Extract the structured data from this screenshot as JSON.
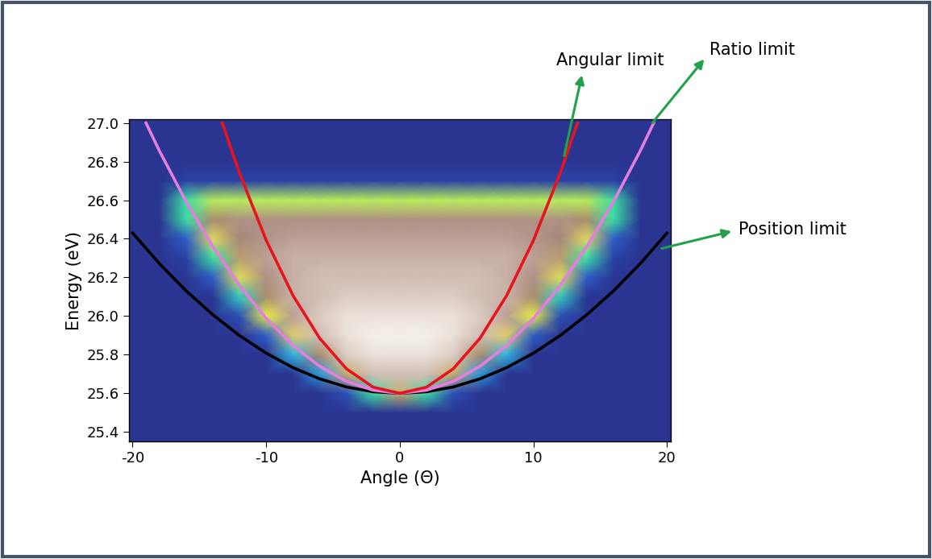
{
  "chart_data": {
    "type": "heatmap",
    "x_label": "Angle (Θ)",
    "y_label": "Energy (eV)",
    "xlim": [
      -20.3,
      20.3
    ],
    "ylim": [
      25.35,
      27.02
    ],
    "xticks": [
      -20,
      -10,
      0,
      10,
      20
    ],
    "yticks": [
      25.4,
      25.6,
      25.8,
      26.0,
      26.2,
      26.4,
      26.6,
      26.8,
      27.0
    ],
    "heatmap": {
      "x": [
        -20,
        -18,
        -16,
        -14,
        -12,
        -10,
        -8,
        -6,
        -4,
        -2,
        0,
        2,
        4,
        6,
        8,
        10,
        12,
        14,
        16,
        18,
        20
      ],
      "y": [
        25.4,
        25.5,
        25.6,
        25.7,
        25.8,
        25.9,
        26.0,
        26.1,
        26.2,
        26.3,
        26.4,
        26.5,
        26.6,
        26.7,
        26.8,
        26.9,
        27.0
      ],
      "cells": [
        [
          0,
          0,
          0,
          0,
          0,
          0,
          0,
          0,
          0,
          0,
          0,
          0,
          0,
          0,
          0,
          0,
          0,
          0,
          0,
          0,
          0
        ],
        [
          0,
          0,
          0,
          0,
          0,
          0,
          0,
          0,
          0,
          0,
          0,
          0,
          0,
          0,
          0,
          0,
          0,
          0,
          0,
          0,
          0
        ],
        [
          0,
          0,
          0,
          0,
          0,
          0,
          0,
          0,
          0.1,
          0.4,
          0.7,
          0.4,
          0.1,
          0,
          0,
          0,
          0,
          0,
          0,
          0,
          0
        ],
        [
          0,
          0,
          0,
          0,
          0,
          0,
          0,
          0.25,
          0.7,
          0.9,
          0.9,
          0.9,
          0.7,
          0.25,
          0,
          0,
          0,
          0,
          0,
          0,
          0
        ],
        [
          0,
          0,
          0,
          0,
          0,
          0,
          0.3,
          0.75,
          0.92,
          0.95,
          0.95,
          0.95,
          0.92,
          0.75,
          0.3,
          0,
          0,
          0,
          0,
          0,
          0
        ],
        [
          0,
          0,
          0,
          0,
          0,
          0.15,
          0.65,
          0.9,
          0.95,
          0.97,
          0.97,
          0.97,
          0.95,
          0.9,
          0.65,
          0.15,
          0,
          0,
          0,
          0,
          0
        ],
        [
          0,
          0,
          0,
          0,
          0.1,
          0.55,
          0.85,
          0.92,
          0.95,
          0.95,
          0.95,
          0.95,
          0.95,
          0.92,
          0.85,
          0.55,
          0.1,
          0,
          0,
          0,
          0
        ],
        [
          0,
          0,
          0,
          0,
          0.35,
          0.75,
          0.88,
          0.9,
          0.92,
          0.92,
          0.92,
          0.92,
          0.92,
          0.9,
          0.88,
          0.75,
          0.35,
          0,
          0,
          0,
          0
        ],
        [
          0,
          0,
          0,
          0.15,
          0.6,
          0.82,
          0.88,
          0.9,
          0.9,
          0.9,
          0.9,
          0.9,
          0.9,
          0.9,
          0.88,
          0.82,
          0.6,
          0.15,
          0,
          0,
          0
        ],
        [
          0,
          0,
          0.05,
          0.4,
          0.72,
          0.85,
          0.88,
          0.88,
          0.88,
          0.88,
          0.88,
          0.88,
          0.88,
          0.88,
          0.88,
          0.85,
          0.72,
          0.4,
          0.05,
          0,
          0
        ],
        [
          0,
          0,
          0.15,
          0.62,
          0.8,
          0.83,
          0.85,
          0.85,
          0.85,
          0.85,
          0.85,
          0.85,
          0.85,
          0.85,
          0.85,
          0.83,
          0.8,
          0.62,
          0.15,
          0,
          0
        ],
        [
          0,
          0,
          0.4,
          0.75,
          0.82,
          0.82,
          0.82,
          0.82,
          0.82,
          0.82,
          0.82,
          0.82,
          0.82,
          0.82,
          0.82,
          0.82,
          0.82,
          0.75,
          0.4,
          0,
          0
        ],
        [
          0,
          0,
          0.4,
          0.5,
          0.5,
          0.5,
          0.5,
          0.5,
          0.5,
          0.5,
          0.5,
          0.5,
          0.5,
          0.5,
          0.5,
          0.5,
          0.5,
          0.5,
          0.4,
          0,
          0
        ],
        [
          0,
          0,
          0.05,
          0.05,
          0.05,
          0.05,
          0.05,
          0.05,
          0.05,
          0.05,
          0.05,
          0.05,
          0.05,
          0.05,
          0.05,
          0.05,
          0.05,
          0.05,
          0.05,
          0,
          0
        ],
        [
          0,
          0,
          0,
          0,
          0,
          0,
          0,
          0,
          0,
          0,
          0,
          0,
          0,
          0,
          0,
          0,
          0,
          0,
          0,
          0,
          0
        ],
        [
          0,
          0,
          0,
          0,
          0,
          0,
          0,
          0,
          0,
          0,
          0,
          0,
          0,
          0,
          0,
          0,
          0,
          0,
          0,
          0,
          0
        ],
        [
          0,
          0,
          0,
          0,
          0,
          0,
          0,
          0,
          0,
          0,
          0,
          0,
          0,
          0,
          0,
          0,
          0,
          0,
          0,
          0,
          0
        ]
      ]
    },
    "series": [
      {
        "type": "line",
        "color": "#000000",
        "x": [
          -20,
          -18,
          -16,
          -14,
          -12,
          -10,
          -8,
          -6,
          -4,
          -2,
          0,
          2,
          4,
          6,
          8,
          10,
          12,
          14,
          16,
          18,
          20
        ],
        "values": [
          26.43,
          26.272,
          26.131,
          26.007,
          25.899,
          25.808,
          25.733,
          25.675,
          25.633,
          25.608,
          25.6,
          25.608,
          25.633,
          25.675,
          25.733,
          25.808,
          25.899,
          26.007,
          26.131,
          26.272,
          26.43
        ]
      },
      {
        "type": "line",
        "color": "#e47fe0",
        "x": [
          -19,
          -18,
          -16,
          -14,
          -12,
          -10,
          -8,
          -6,
          -4,
          -2,
          0,
          2,
          4,
          6,
          8,
          10,
          12,
          14,
          16,
          18,
          19
        ],
        "values": [
          27.0,
          26.856,
          26.593,
          26.36,
          26.158,
          25.988,
          25.848,
          25.74,
          25.662,
          25.616,
          25.6,
          25.616,
          25.662,
          25.74,
          25.848,
          25.988,
          26.158,
          26.36,
          26.593,
          26.856,
          27.0
        ]
      },
      {
        "type": "line",
        "color": "#e8141c",
        "x": [
          -13.3,
          -12,
          -10,
          -8,
          -6,
          -4,
          -2,
          0,
          2,
          4,
          6,
          8,
          10,
          12,
          13.3
        ],
        "values": [
          27.0,
          26.74,
          26.392,
          26.107,
          25.885,
          25.727,
          25.632,
          25.6,
          25.632,
          25.727,
          25.885,
          26.107,
          26.392,
          26.74,
          27.0
        ]
      }
    ],
    "annotations": [
      {
        "text": "Angular limit",
        "x": 12.3,
        "y": 26.83
      },
      {
        "text": "Ratio limit",
        "x": 18.9,
        "y": 27.0
      },
      {
        "text": "Position limit",
        "x": 19.6,
        "y": 26.35
      }
    ]
  }
}
